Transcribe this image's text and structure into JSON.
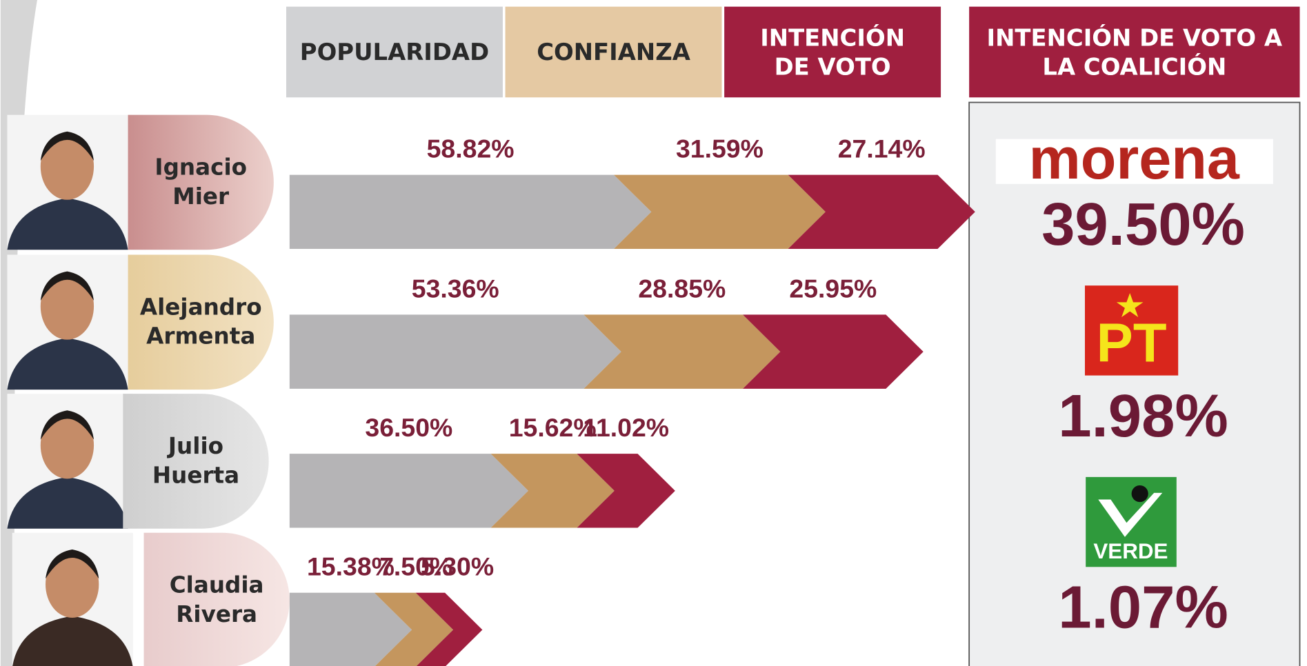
{
  "chart_data": {
    "type": "bar",
    "orientation": "horizontal",
    "stacked": true,
    "categories": [
      "Ignacio Mier",
      "Alejandro Armenta",
      "Julio Huerta",
      "Claudia Rivera"
    ],
    "series": [
      {
        "name": "POPULARIDAD",
        "color": "#b5b4b6",
        "values": [
          58.82,
          53.36,
          36.5,
          15.38
        ],
        "value_labels": [
          "58.82%",
          "53.36%",
          "36.50%",
          "15.38%"
        ]
      },
      {
        "name": "CONFIANZA",
        "color": "#c4965e",
        "values": [
          31.59,
          28.85,
          15.62,
          7.5
        ],
        "value_labels": [
          "31.59%",
          "28.85%",
          "15.62%",
          "7.50%"
        ]
      },
      {
        "name": "INTENCIÓN DE VOTO",
        "color": "#a01f3f",
        "values": [
          27.14,
          25.95,
          11.02,
          5.3
        ],
        "value_labels": [
          "27.14%",
          "25.95%",
          "11.02%",
          "5.30%"
        ]
      }
    ]
  },
  "coalition": {
    "title": "INTENCIÓN DE VOTO A LA COALICIÓN",
    "parties": [
      {
        "name": "morena",
        "share": "39.50%"
      },
      {
        "name": "PT",
        "share": "1.98%"
      },
      {
        "name": "VERDE",
        "share": "1.07%"
      }
    ]
  }
}
